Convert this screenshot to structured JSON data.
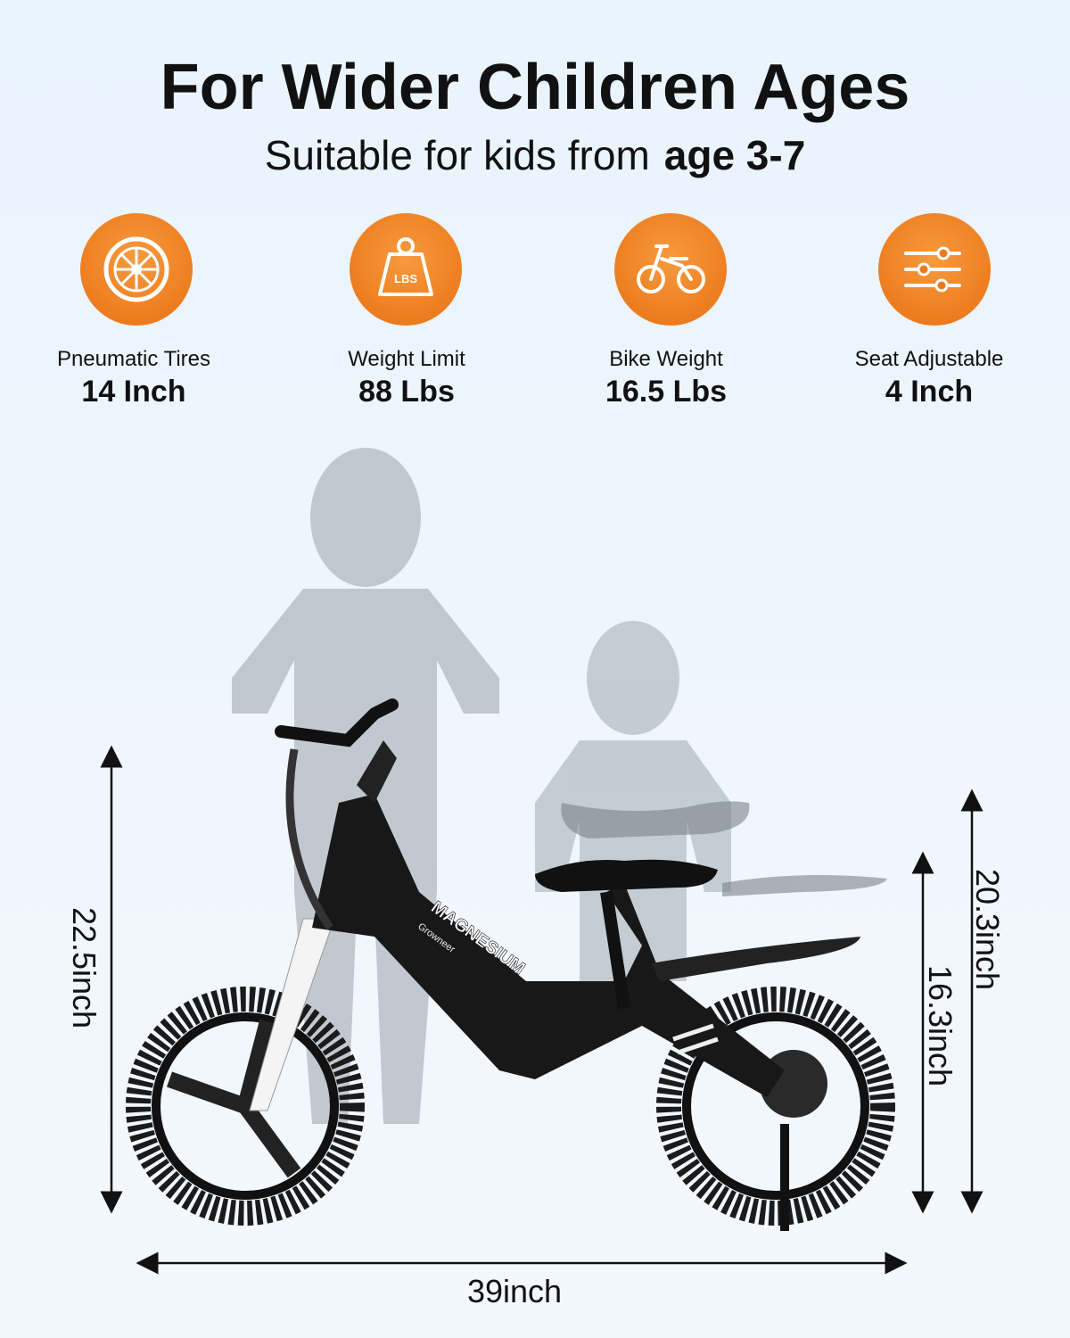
{
  "header": {
    "title": "For Wider Children Ages",
    "subtitle": {
      "text": "Suitable for kids from",
      "emphasis": "age 3-7"
    }
  },
  "features": [
    {
      "label": "Pneumatic Tires",
      "value": "14 Inch"
    },
    {
      "label": "Weight Limit",
      "value": "88 Lbs"
    },
    {
      "label": "Bike Weight",
      "value": "16.5 Lbs"
    },
    {
      "label": "Seat Adjustable",
      "value": "4 Inch"
    }
  ],
  "icon_text": "LBS",
  "dimensions": {
    "total_height": "22.5inch",
    "seat_high": "20.3inch",
    "seat_low": "16.3inch",
    "length": "39inch"
  },
  "bike_labels": [
    "MAGNESIUM",
    "Growneer"
  ]
}
